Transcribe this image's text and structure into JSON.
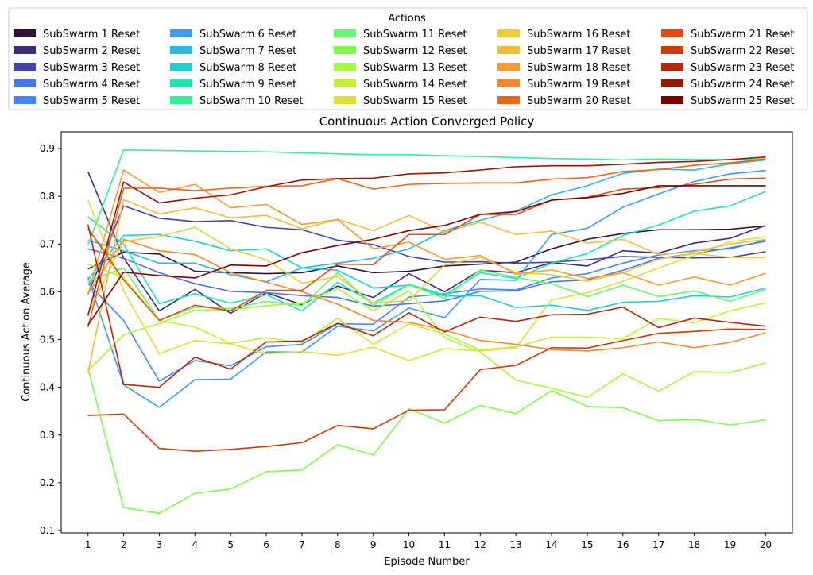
{
  "chart_data": {
    "type": "line",
    "title": "Continuous Action Converged Policy",
    "xlabel": "Episode Number",
    "ylabel": "Continuous Action Average",
    "legend_title": "Actions",
    "legend_position": "top",
    "grid": false,
    "xlim": [
      0.25,
      20.75
    ],
    "ylim": [
      0.095,
      0.935
    ],
    "x": [
      1,
      2,
      3,
      4,
      5,
      6,
      7,
      8,
      9,
      10,
      11,
      12,
      13,
      14,
      15,
      16,
      17,
      18,
      19,
      20
    ],
    "xticks": [
      1,
      2,
      3,
      4,
      5,
      6,
      7,
      8,
      9,
      10,
      11,
      12,
      13,
      14,
      15,
      16,
      17,
      18,
      19,
      20
    ],
    "yticks": [
      0.1,
      0.2,
      0.3,
      0.4,
      0.5,
      0.6,
      0.7,
      0.8,
      0.9
    ],
    "series": [
      {
        "name": "SubSwarm 1 Reset",
        "color": "#30123b",
        "values": [
          0.648,
          0.683,
          0.679,
          0.643,
          0.64,
          0.638,
          0.64,
          0.654,
          0.64,
          0.643,
          0.654,
          0.658,
          0.662,
          0.69,
          0.71,
          0.722,
          0.73,
          0.73,
          0.731,
          0.738
        ]
      },
      {
        "name": "SubSwarm 2 Reset",
        "color": "#3c2c7c",
        "values": [
          0.852,
          0.671,
          0.56,
          0.605,
          0.555,
          0.598,
          0.573,
          0.612,
          0.588,
          0.638,
          0.6,
          0.645,
          0.64,
          0.661,
          0.654,
          0.686,
          0.681,
          0.702,
          0.712,
          0.739
        ]
      },
      {
        "name": "SubSwarm 3 Reset",
        "color": "#4145ab",
        "values": [
          0.595,
          0.78,
          0.754,
          0.747,
          0.749,
          0.735,
          0.73,
          0.708,
          0.699,
          0.674,
          0.662,
          0.663,
          0.66,
          0.662,
          0.667,
          0.674,
          0.672,
          0.671,
          0.672,
          0.684
        ]
      },
      {
        "name": "SubSwarm 4 Reset",
        "color": "#4675ed",
        "values": [
          0.69,
          0.67,
          0.64,
          0.617,
          0.601,
          0.598,
          0.592,
          0.588,
          0.57,
          0.575,
          0.581,
          0.601,
          0.602,
          0.621,
          0.625,
          0.645,
          0.67,
          0.68,
          0.692,
          0.706
        ]
      },
      {
        "name": "SubSwarm 5 Reset",
        "color": "#4686fb",
        "values": [
          0.618,
          0.54,
          0.413,
          0.456,
          0.445,
          0.485,
          0.49,
          0.533,
          0.532,
          0.589,
          0.596,
          0.606,
          0.604,
          0.629,
          0.638,
          0.66,
          0.677,
          0.686,
          0.69,
          0.708
        ]
      },
      {
        "name": "SubSwarm 6 Reset",
        "color": "#3b9bf7",
        "values": [
          0.631,
          0.405,
          0.358,
          0.416,
          0.417,
          0.474,
          0.474,
          0.528,
          0.518,
          0.566,
          0.546,
          0.626,
          0.624,
          0.72,
          0.733,
          0.777,
          0.805,
          0.831,
          0.847,
          0.854
        ]
      },
      {
        "name": "SubSwarm 7 Reset",
        "color": "#2ab9e4",
        "values": [
          0.708,
          0.686,
          0.66,
          0.66,
          0.636,
          0.621,
          0.65,
          0.66,
          0.67,
          0.69,
          0.728,
          0.75,
          0.769,
          0.803,
          0.822,
          0.848,
          0.857,
          0.855,
          0.868,
          0.876
        ]
      },
      {
        "name": "SubSwarm 8 Reset",
        "color": "#1bd0d5",
        "values": [
          0.625,
          0.718,
          0.72,
          0.706,
          0.686,
          0.69,
          0.65,
          0.645,
          0.608,
          0.614,
          0.591,
          0.592,
          0.567,
          0.572,
          0.561,
          0.578,
          0.58,
          0.592,
          0.589,
          0.608
        ]
      },
      {
        "name": "SubSwarm 9 Reset",
        "color": "#1ee4b4",
        "values": [
          0.757,
          0.7,
          0.575,
          0.596,
          0.576,
          0.594,
          0.56,
          0.62,
          0.576,
          0.616,
          0.593,
          0.64,
          0.628,
          0.66,
          0.68,
          0.718,
          0.74,
          0.769,
          0.78,
          0.81
        ]
      },
      {
        "name": "SubSwarm 10 Reset",
        "color": "#32f197",
        "values": [
          0.698,
          0.897,
          0.896,
          0.895,
          0.894,
          0.893,
          0.891,
          0.889,
          0.887,
          0.887,
          0.885,
          0.883,
          0.881,
          0.879,
          0.878,
          0.876,
          0.878,
          0.877,
          0.877,
          0.878
        ]
      },
      {
        "name": "SubSwarm 11 Reset",
        "color": "#62fc6b",
        "values": [
          0.622,
          0.65,
          0.54,
          0.568,
          0.565,
          0.58,
          0.571,
          0.64,
          0.571,
          0.615,
          0.586,
          0.646,
          0.63,
          0.617,
          0.59,
          0.614,
          0.59,
          0.602,
          0.58,
          0.605
        ]
      },
      {
        "name": "SubSwarm 12 Reset",
        "color": "#7efc4a",
        "values": [
          0.44,
          0.148,
          0.136,
          0.178,
          0.187,
          0.223,
          0.227,
          0.28,
          0.258,
          0.355,
          0.325,
          0.362,
          0.345,
          0.393,
          0.36,
          0.357,
          0.33,
          0.333,
          0.321,
          0.332
        ]
      },
      {
        "name": "SubSwarm 13 Reset",
        "color": "#a4fc3b",
        "values": [
          0.435,
          0.51,
          0.534,
          0.562,
          0.562,
          0.571,
          0.576,
          0.607,
          0.56,
          0.602,
          0.504,
          0.474,
          0.415,
          0.398,
          0.379,
          0.428,
          0.392,
          0.433,
          0.431,
          0.451
        ]
      },
      {
        "name": "SubSwarm 14 Reset",
        "color": "#c2f133",
        "values": [
          0.658,
          0.63,
          0.54,
          0.526,
          0.492,
          0.504,
          0.493,
          0.545,
          0.49,
          0.533,
          0.512,
          0.478,
          0.485,
          0.505,
          0.505,
          0.502,
          0.544,
          0.535,
          0.56,
          0.577
        ]
      },
      {
        "name": "SubSwarm 15 Reset",
        "color": "#dbe235",
        "values": [
          0.792,
          0.602,
          0.47,
          0.498,
          0.491,
          0.47,
          0.475,
          0.467,
          0.484,
          0.456,
          0.481,
          0.476,
          0.483,
          0.583,
          0.598,
          0.622,
          0.65,
          0.676,
          0.705,
          0.715
        ]
      },
      {
        "name": "SubSwarm 16 Reset",
        "color": "#eccd3a",
        "values": [
          0.555,
          0.705,
          0.716,
          0.735,
          0.69,
          0.667,
          0.618,
          0.632,
          0.576,
          0.582,
          0.656,
          0.672,
          0.64,
          0.636,
          0.622,
          0.64,
          0.668,
          0.68,
          0.672,
          0.672
        ]
      },
      {
        "name": "SubSwarm 17 Reset",
        "color": "#f5ba3a",
        "values": [
          0.43,
          0.793,
          0.763,
          0.776,
          0.755,
          0.76,
          0.732,
          0.752,
          0.728,
          0.76,
          0.725,
          0.746,
          0.72,
          0.727,
          0.702,
          0.71,
          0.678,
          0.684,
          0.7,
          0.71
        ]
      },
      {
        "name": "SubSwarm 18 Reset",
        "color": "#fa9b2d",
        "values": [
          0.594,
          0.855,
          0.808,
          0.825,
          0.776,
          0.783,
          0.741,
          0.751,
          0.69,
          0.704,
          0.668,
          0.676,
          0.637,
          0.646,
          0.628,
          0.64,
          0.614,
          0.631,
          0.614,
          0.639
        ]
      },
      {
        "name": "SubSwarm 19 Reset",
        "color": "#f98726",
        "values": [
          0.596,
          0.71,
          0.686,
          0.678,
          0.64,
          0.62,
          0.6,
          0.574,
          0.54,
          0.536,
          0.52,
          0.498,
          0.49,
          0.479,
          0.476,
          0.483,
          0.495,
          0.483,
          0.494,
          0.514
        ]
      },
      {
        "name": "SubSwarm 20 Reset",
        "color": "#f06418",
        "values": [
          0.526,
          0.817,
          0.817,
          0.812,
          0.817,
          0.821,
          0.822,
          0.837,
          0.815,
          0.825,
          0.827,
          0.828,
          0.828,
          0.836,
          0.839,
          0.852,
          0.856,
          0.865,
          0.87,
          0.878
        ]
      },
      {
        "name": "SubSwarm 21 Reset",
        "color": "#e44a0f",
        "values": [
          0.733,
          0.625,
          0.54,
          0.572,
          0.56,
          0.603,
          0.603,
          0.658,
          0.657,
          0.72,
          0.72,
          0.762,
          0.762,
          0.792,
          0.798,
          0.815,
          0.818,
          0.825,
          0.836,
          0.838
        ]
      },
      {
        "name": "SubSwarm 22 Reset",
        "color": "#d13907",
        "values": [
          0.341,
          0.344,
          0.272,
          0.266,
          0.27,
          0.276,
          0.284,
          0.32,
          0.313,
          0.352,
          0.353,
          0.437,
          0.446,
          0.483,
          0.482,
          0.498,
          0.513,
          0.517,
          0.522,
          0.521
        ]
      },
      {
        "name": "SubSwarm 23 Reset",
        "color": "#b92502",
        "values": [
          0.741,
          0.406,
          0.4,
          0.463,
          0.438,
          0.495,
          0.497,
          0.534,
          0.508,
          0.556,
          0.516,
          0.547,
          0.538,
          0.552,
          0.553,
          0.568,
          0.525,
          0.545,
          0.536,
          0.528
        ]
      },
      {
        "name": "SubSwarm 24 Reset",
        "color": "#9a1601",
        "values": [
          0.55,
          0.83,
          0.786,
          0.796,
          0.803,
          0.82,
          0.834,
          0.837,
          0.838,
          0.847,
          0.849,
          0.855,
          0.862,
          0.864,
          0.864,
          0.867,
          0.871,
          0.873,
          0.877,
          0.882
        ]
      },
      {
        "name": "SubSwarm 25 Reset",
        "color": "#7a0403",
        "values": [
          0.53,
          0.641,
          0.634,
          0.629,
          0.656,
          0.654,
          0.682,
          0.697,
          0.71,
          0.728,
          0.739,
          0.762,
          0.768,
          0.792,
          0.797,
          0.806,
          0.822,
          0.822,
          0.822,
          0.822
        ]
      }
    ]
  }
}
